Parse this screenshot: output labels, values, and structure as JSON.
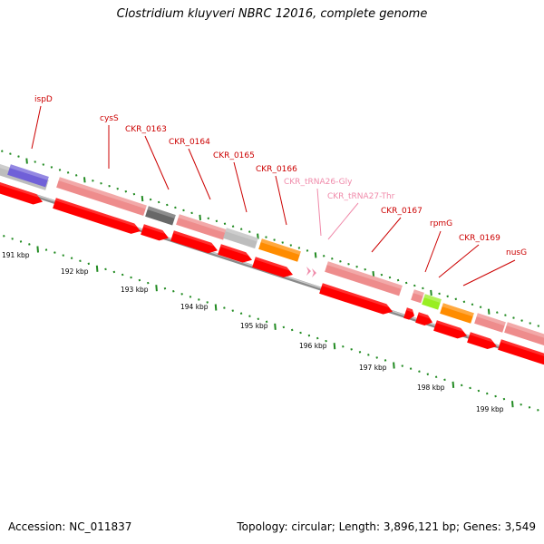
{
  "title": "Clostridium kluyveri NBRC 12016, complete genome",
  "footer": {
    "accession": "Accession: NC_011837",
    "summary": "Topology: circular; Length: 3,896,121 bp; Genes: 3,549"
  },
  "colors": {
    "cds_red": "#ff0000",
    "pink": "#ee8c8c",
    "grey": "#bdbdbd",
    "darkgrey": "#686868",
    "purple": "#7060d8",
    "orange": "#ff8c00",
    "green": "#99ee22",
    "label_red": "#cc0000",
    "label_trna": "#f08aaa",
    "tick_green": "#228b22"
  },
  "kbp_labels": [
    "191 kbp",
    "192 kbp",
    "193 kbp",
    "194 kbp",
    "195 kbp",
    "196 kbp",
    "197 kbp",
    "198 kbp",
    "199 kbp"
  ],
  "gene_labels": [
    {
      "name": "ispD",
      "type": "gene"
    },
    {
      "name": "cysS",
      "type": "gene"
    },
    {
      "name": "CKR_0163",
      "type": "gene"
    },
    {
      "name": "CKR_0164",
      "type": "gene"
    },
    {
      "name": "CKR_0165",
      "type": "gene"
    },
    {
      "name": "CKR_0166",
      "type": "gene"
    },
    {
      "name": "CKR_tRNA26-Gly",
      "type": "trna"
    },
    {
      "name": "CKR_tRNA27-Thr",
      "type": "trna"
    },
    {
      "name": "CKR_0167",
      "type": "gene"
    },
    {
      "name": "rpmG",
      "type": "gene"
    },
    {
      "name": "CKR_0169",
      "type": "gene"
    },
    {
      "name": "nusG",
      "type": "gene"
    }
  ]
}
